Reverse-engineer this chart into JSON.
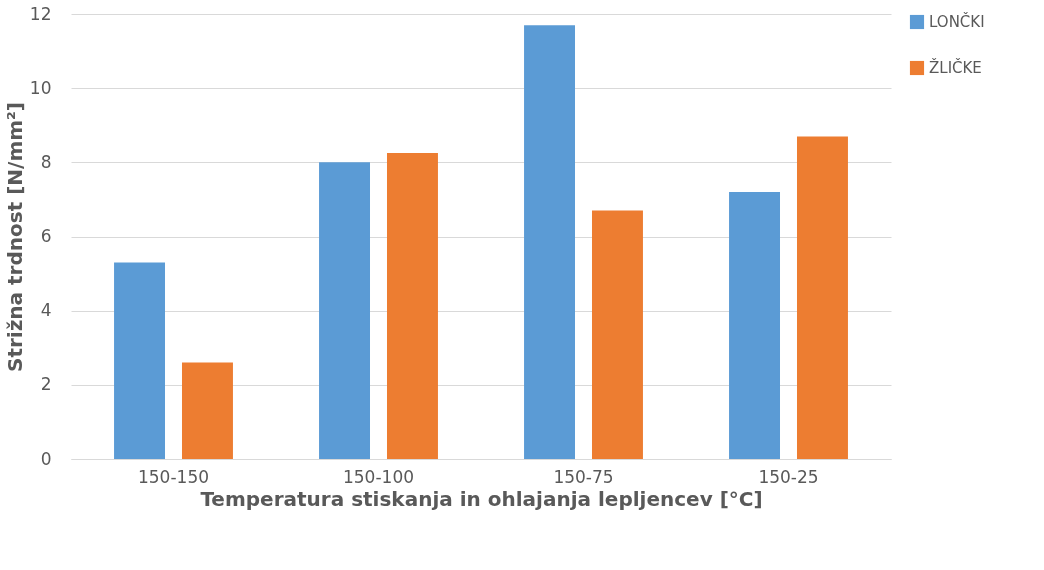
{
  "chart_data": {
    "type": "bar",
    "xlabel": "Temperatura stiskanja in ohlajanja lepljencev [°C]",
    "ylabel": "Strižna trdnost [N/mm²]",
    "categories": [
      "150-150",
      "150-100",
      "150-75",
      "150-25"
    ],
    "series": [
      {
        "name": "LONČKI",
        "color": "#5b9bd5",
        "values": [
          5.3,
          8.0,
          11.7,
          7.2
        ]
      },
      {
        "name": "ŽLIČKE",
        "color": "#ed7d31",
        "values": [
          2.6,
          8.25,
          6.7,
          8.7
        ]
      }
    ],
    "ylim": [
      0,
      12
    ],
    "yticks": [
      0,
      2,
      4,
      6,
      8,
      10,
      12
    ],
    "grid": "y",
    "legend": "right"
  }
}
